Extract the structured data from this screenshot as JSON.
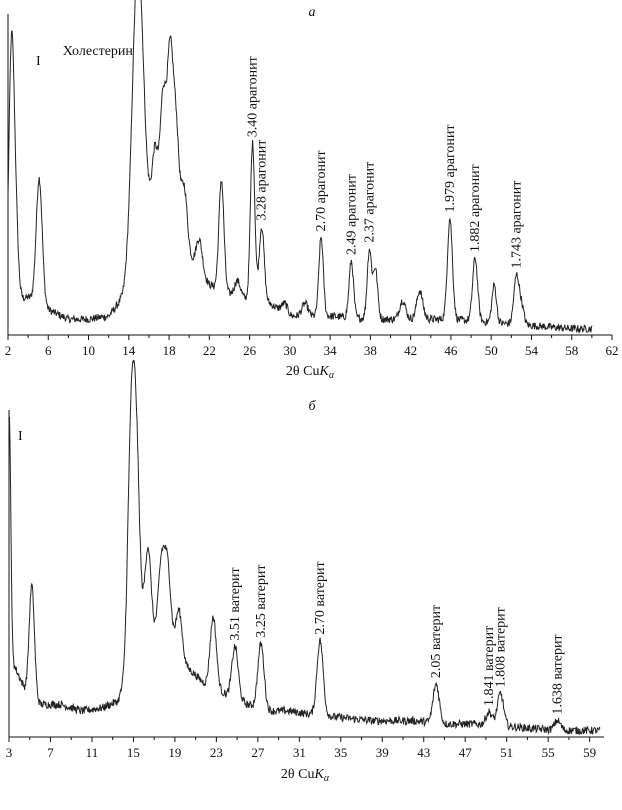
{
  "chart_data": [
    {
      "type": "line",
      "panel_letter": "а",
      "ylabel": "I",
      "xlabel_main": "2θ Cu",
      "xlabel_symbol": "K",
      "xlabel_sub": "α",
      "xlim": [
        2,
        62
      ],
      "xticks": [
        2,
        6,
        10,
        14,
        18,
        22,
        26,
        30,
        34,
        38,
        42,
        46,
        50,
        54,
        58,
        62
      ],
      "x_tick_labels": [
        "2",
        "6",
        "10",
        "14",
        "18",
        "22",
        "26",
        "30",
        "34",
        "38",
        "42",
        "46",
        "50",
        "54",
        "58",
        "62"
      ],
      "ylim": [
        0,
        100
      ],
      "baseline": [
        [
          2,
          10
        ],
        [
          4,
          12
        ],
        [
          6,
          8
        ],
        [
          8,
          5
        ],
        [
          10,
          5
        ],
        [
          12,
          6
        ],
        [
          13.5,
          12
        ],
        [
          14,
          16
        ],
        [
          16,
          34
        ],
        [
          18,
          32
        ],
        [
          20,
          25
        ],
        [
          22,
          16
        ],
        [
          24,
          13
        ],
        [
          26,
          11
        ],
        [
          28,
          10
        ],
        [
          30,
          6
        ],
        [
          34,
          6
        ],
        [
          38,
          5
        ],
        [
          42,
          5
        ],
        [
          46,
          5
        ],
        [
          50,
          4
        ],
        [
          54,
          3
        ],
        [
          58,
          2
        ],
        [
          60,
          2
        ]
      ],
      "peaks": [
        {
          "x": 2.3,
          "y": 58,
          "w": 0.25
        },
        {
          "x": 2.6,
          "y": 40,
          "w": 0.3
        },
        {
          "x": 5.1,
          "y": 40,
          "w": 0.3
        },
        {
          "x": 14.9,
          "y": 95,
          "w": 0.55
        },
        {
          "x": 16.6,
          "y": 25,
          "w": 0.3
        },
        {
          "x": 17.4,
          "y": 42,
          "w": 0.3
        },
        {
          "x": 18.1,
          "y": 55,
          "w": 0.3
        },
        {
          "x": 18.7,
          "y": 35,
          "w": 0.3
        },
        {
          "x": 19.5,
          "y": 20,
          "w": 0.3
        },
        {
          "x": 21.0,
          "y": 10,
          "w": 0.3
        },
        {
          "x": 23.2,
          "y": 35,
          "w": 0.25
        },
        {
          "x": 24.8,
          "y": 5,
          "w": 0.3
        },
        {
          "x": 26.3,
          "y": 50,
          "w": 0.22
        },
        {
          "x": 27.2,
          "y": 24,
          "w": 0.25
        },
        {
          "x": 29.5,
          "y": 3,
          "w": 0.3
        },
        {
          "x": 31.5,
          "y": 4,
          "w": 0.3
        },
        {
          "x": 33.1,
          "y": 25,
          "w": 0.22
        },
        {
          "x": 36.1,
          "y": 18,
          "w": 0.22
        },
        {
          "x": 37.9,
          "y": 22,
          "w": 0.22
        },
        {
          "x": 38.5,
          "y": 16,
          "w": 0.22
        },
        {
          "x": 41.2,
          "y": 6,
          "w": 0.3
        },
        {
          "x": 42.9,
          "y": 9,
          "w": 0.3
        },
        {
          "x": 45.9,
          "y": 32,
          "w": 0.25
        },
        {
          "x": 48.4,
          "y": 20,
          "w": 0.25
        },
        {
          "x": 50.3,
          "y": 12,
          "w": 0.22
        },
        {
          "x": 52.5,
          "y": 15,
          "w": 0.25
        },
        {
          "x": 53.0,
          "y": 6,
          "w": 0.25
        }
      ],
      "annotations": [
        {
          "text": "Холестерин",
          "x": 14.9,
          "rot": 0
        },
        {
          "text": "3.40 арагонит",
          "x": 26.3,
          "rot": -90
        },
        {
          "text": "3.28 арагонит",
          "x": 27.2,
          "rot": -90
        },
        {
          "text": "2.70 арагонит",
          "x": 33.1,
          "rot": -90
        },
        {
          "text": "2.49 арагонит",
          "x": 36.1,
          "rot": -90
        },
        {
          "text": "2.37 арагонит",
          "x": 37.9,
          "rot": -90
        },
        {
          "text": "1.979 арагонит",
          "x": 45.9,
          "rot": -90
        },
        {
          "text": "1.882 арагонит",
          "x": 48.4,
          "rot": -90
        },
        {
          "text": "1.743 арагонит",
          "x": 52.5,
          "rot": -90
        }
      ]
    },
    {
      "type": "line",
      "panel_letter": "б",
      "ylabel": "I",
      "xlabel_main": "2θ Cu",
      "xlabel_symbol": "K",
      "xlabel_sub": "α",
      "xlim": [
        3,
        60
      ],
      "xticks": [
        3,
        7,
        11,
        15,
        19,
        23,
        27,
        31,
        35,
        39,
        43,
        47,
        51,
        55,
        59
      ],
      "x_tick_labels": [
        "3",
        "7",
        "11",
        "15",
        "19",
        "23",
        "27",
        "31",
        "35",
        "39",
        "43",
        "47",
        "51",
        "55",
        "59"
      ],
      "ylim": [
        0,
        100
      ],
      "baseline": [
        [
          3,
          40
        ],
        [
          3.5,
          22
        ],
        [
          4.5,
          15
        ],
        [
          6,
          10
        ],
        [
          8,
          10
        ],
        [
          10,
          8
        ],
        [
          12,
          9
        ],
        [
          13.5,
          11
        ],
        [
          14.3,
          18
        ],
        [
          16,
          30
        ],
        [
          18,
          32
        ],
        [
          20,
          22
        ],
        [
          22,
          16
        ],
        [
          24,
          13
        ],
        [
          26,
          10
        ],
        [
          28,
          8
        ],
        [
          30,
          8
        ],
        [
          32,
          7
        ],
        [
          35,
          6
        ],
        [
          38,
          5
        ],
        [
          42,
          5
        ],
        [
          45,
          4
        ],
        [
          48,
          4
        ],
        [
          52,
          3
        ],
        [
          56,
          2
        ],
        [
          60,
          2
        ]
      ],
      "peaks": [
        {
          "x": 3.05,
          "y": 60,
          "w": 0.12
        },
        {
          "x": 5.2,
          "y": 34,
          "w": 0.25
        },
        {
          "x": 14.7,
          "y": 52,
          "w": 0.3
        },
        {
          "x": 15.2,
          "y": 72,
          "w": 0.35
        },
        {
          "x": 16.4,
          "y": 28,
          "w": 0.3
        },
        {
          "x": 17.7,
          "y": 22,
          "w": 0.3
        },
        {
          "x": 18.3,
          "y": 22,
          "w": 0.3
        },
        {
          "x": 19.4,
          "y": 14,
          "w": 0.3
        },
        {
          "x": 22.7,
          "y": 22,
          "w": 0.3
        },
        {
          "x": 24.8,
          "y": 16,
          "w": 0.3
        },
        {
          "x": 27.3,
          "y": 20,
          "w": 0.3
        },
        {
          "x": 33.0,
          "y": 23,
          "w": 0.3
        },
        {
          "x": 44.2,
          "y": 12,
          "w": 0.3
        },
        {
          "x": 49.3,
          "y": 4,
          "w": 0.3
        },
        {
          "x": 50.4,
          "y": 10,
          "w": 0.3
        },
        {
          "x": 55.9,
          "y": 3,
          "w": 0.3
        }
      ],
      "annotations": [
        {
          "text": "3.51 ватерит",
          "x": 24.8,
          "rot": -90
        },
        {
          "text": "3.25 ватерит",
          "x": 27.3,
          "rot": -90
        },
        {
          "text": "2.70 ватерит",
          "x": 33.0,
          "rot": -90
        },
        {
          "text": "2.05 ватерит",
          "x": 44.2,
          "rot": -90
        },
        {
          "text": "1.841 ватерит",
          "x": 49.3,
          "rot": -90
        },
        {
          "text": "1.808 ватерит",
          "x": 50.4,
          "rot": -90
        },
        {
          "text": "1.638 ватерит",
          "x": 55.9,
          "rot": -90
        }
      ]
    }
  ]
}
